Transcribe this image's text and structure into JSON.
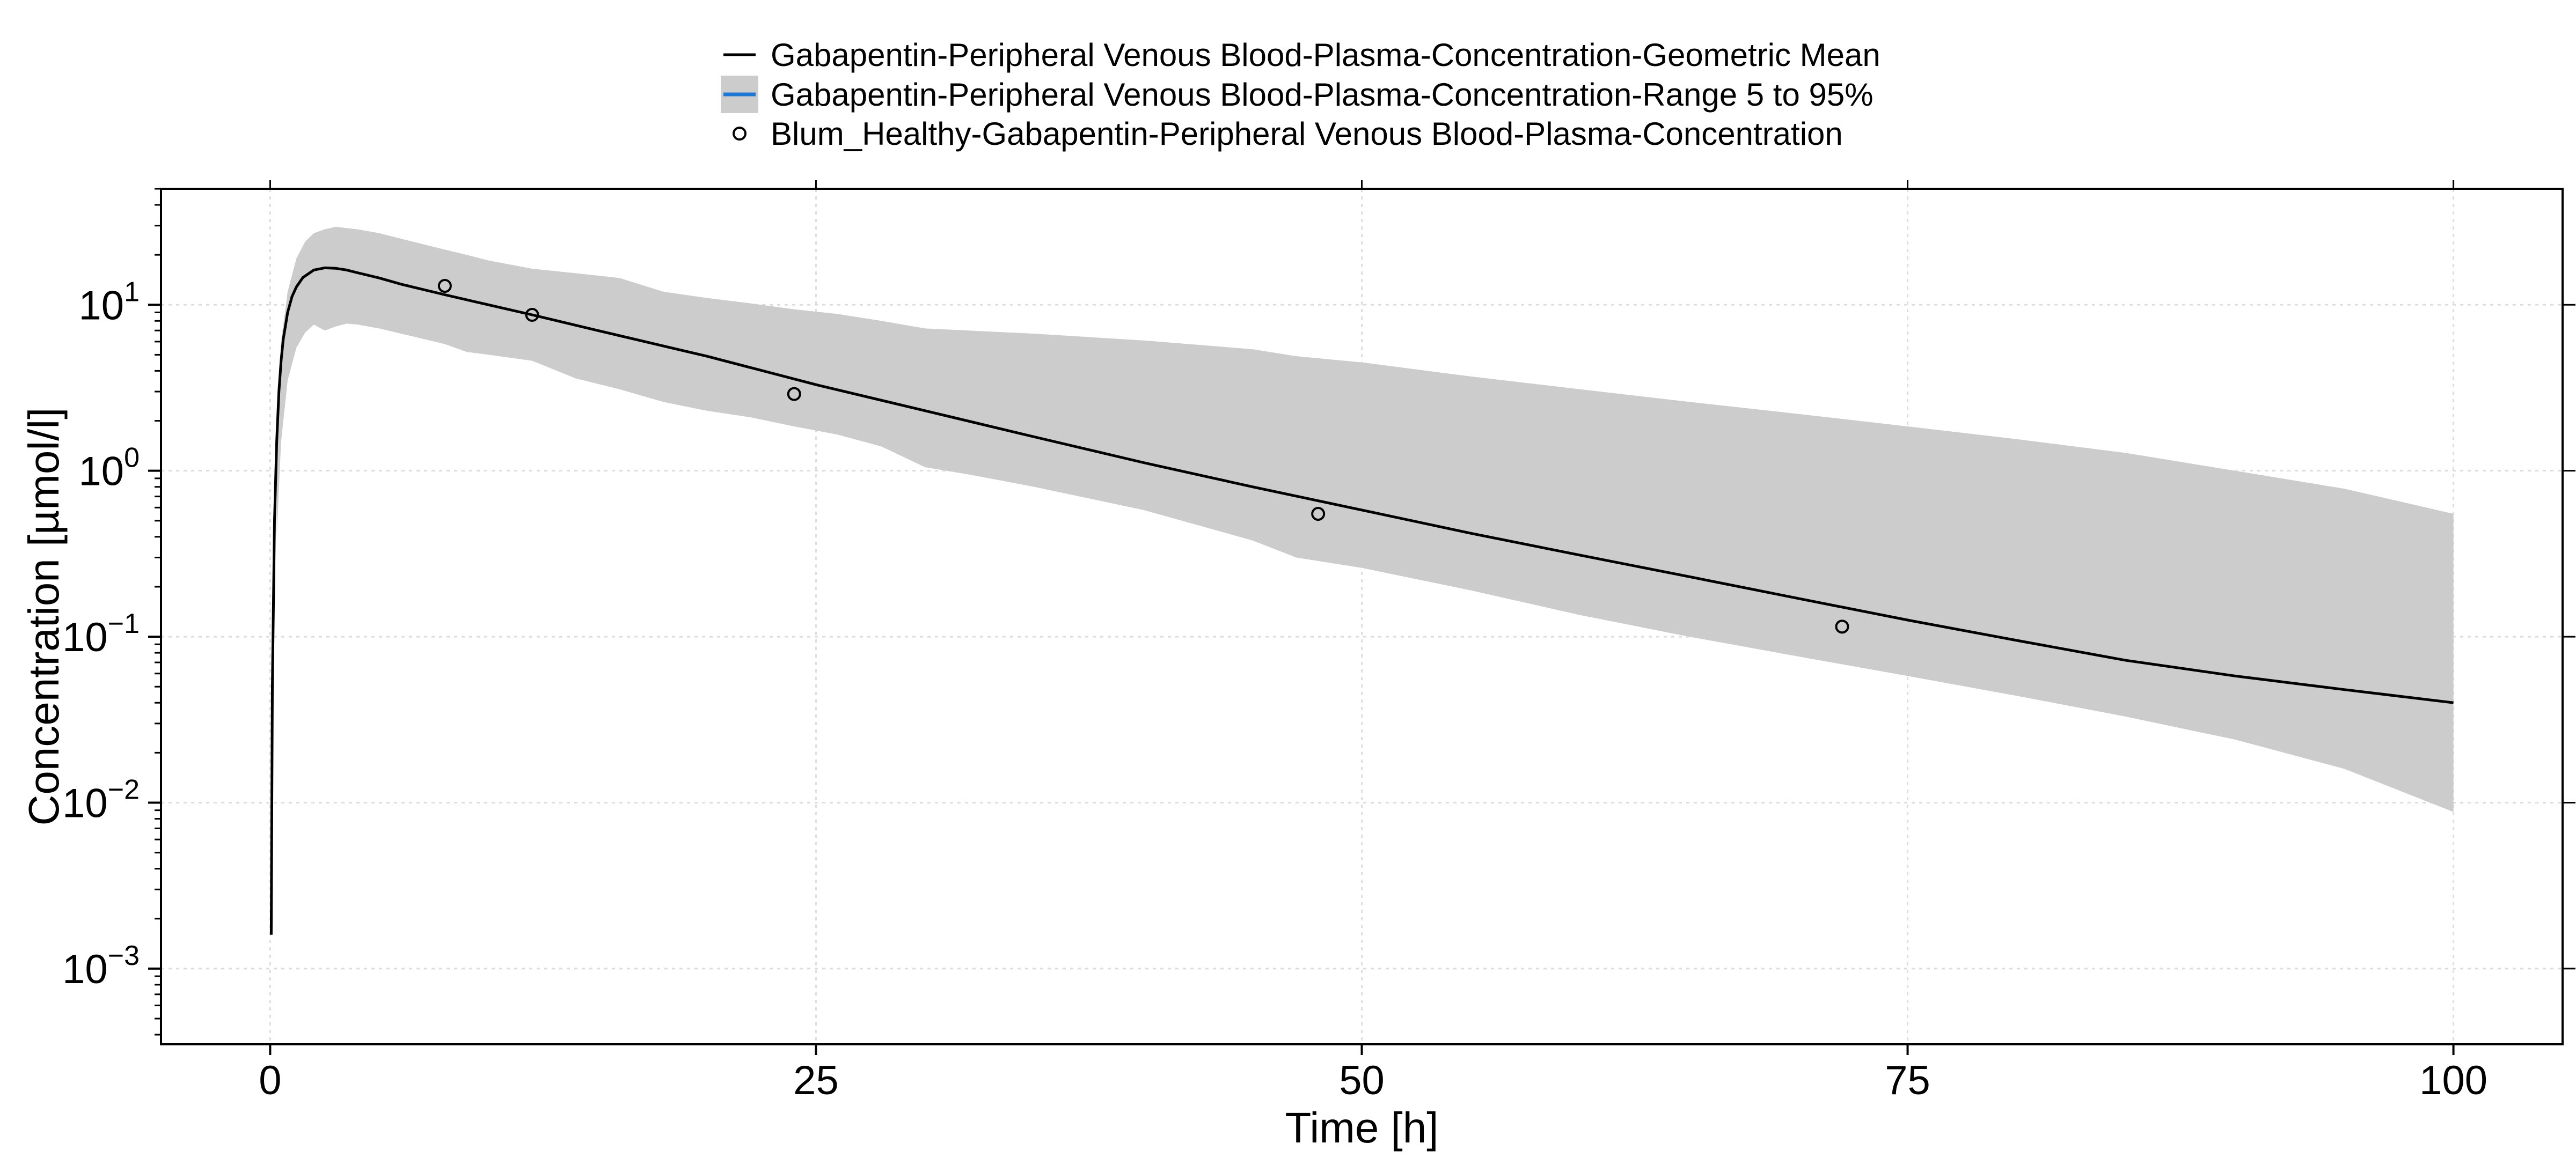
{
  "chart_data": {
    "type": "line",
    "title": "",
    "xlabel": "Time [h]",
    "ylabel": "Concentration [µmol/l]",
    "x_axis": {
      "min": -5,
      "max": 105,
      "ticks": [
        0,
        25,
        50,
        75,
        100
      ],
      "tick_labels": [
        "0",
        "25",
        "50",
        "75",
        "100"
      ]
    },
    "y_axis": {
      "scale": "log",
      "min": 0.00035,
      "max": 50,
      "ticks": [
        0.001,
        0.01,
        0.1,
        1,
        10
      ],
      "tick_labels": [
        {
          "base": "10",
          "exp": "−3"
        },
        {
          "base": "10",
          "exp": "−2"
        },
        {
          "base": "10",
          "exp": "−1"
        },
        {
          "base": "10",
          "exp": "0"
        },
        {
          "base": "10",
          "exp": "1"
        }
      ]
    },
    "grid": true,
    "legend_position": "top-center",
    "legend": [
      {
        "label": "Gabapentin-Peripheral Venous Blood-Plasma-Concentration-Geometric Mean",
        "symbol": "line",
        "color": "#000000"
      },
      {
        "label": "Gabapentin-Peripheral Venous Blood-Plasma-Concentration-Range 5 to 95%",
        "symbol": "band",
        "color": "#cccccc",
        "line_color": "#1f77d4"
      },
      {
        "label": "Blum_Healthy-Gabapentin-Peripheral Venous Blood-Plasma-Concentration",
        "symbol": "circle",
        "color": "#000000"
      }
    ],
    "series": [
      {
        "name": "Gabapentin-Peripheral Venous Blood-Plasma-Concentration-Geometric Mean",
        "kind": "line",
        "color": "#000000",
        "x": [
          0.05,
          0.1,
          0.2,
          0.3,
          0.4,
          0.5,
          0.6,
          0.8,
          1.0,
          1.2,
          1.5,
          2.0,
          2.5,
          3.0,
          3.5,
          4,
          5,
          6,
          8,
          10,
          12,
          15,
          20,
          25,
          30,
          35,
          40,
          45,
          50,
          55,
          60,
          65,
          70,
          75,
          80,
          85,
          90,
          95,
          100
        ],
        "y": [
          0.0016,
          0.05,
          0.5,
          1.5,
          3.0,
          4.6,
          6.2,
          9.0,
          11.2,
          12.8,
          14.6,
          16.2,
          16.7,
          16.6,
          16.2,
          15.6,
          14.5,
          13.3,
          11.5,
          10.0,
          8.7,
          7.0,
          4.9,
          3.3,
          2.3,
          1.6,
          1.12,
          0.8,
          0.58,
          0.42,
          0.31,
          0.23,
          0.17,
          0.126,
          0.095,
          0.072,
          0.058,
          0.048,
          0.04
        ]
      },
      {
        "name": "Gabapentin-Peripheral Venous Blood-Plasma-Concentration-Range 5 to 95%",
        "kind": "band",
        "color": "#cccccc",
        "x": [
          0.3,
          0.5,
          0.8,
          1.2,
          1.6,
          2.0,
          2.5,
          3.0,
          3.5,
          4,
          5,
          6,
          8,
          9,
          10,
          12,
          14,
          16,
          18,
          20,
          22,
          24,
          26,
          28,
          30,
          32,
          35,
          40,
          45,
          47,
          50,
          55,
          60,
          65,
          70,
          75,
          80,
          85,
          90,
          95,
          100
        ],
        "lower": [
          0.4,
          1.5,
          3.5,
          5.5,
          6.8,
          7.6,
          7.0,
          7.4,
          7.7,
          7.6,
          7.2,
          6.7,
          5.8,
          5.2,
          5.0,
          4.6,
          3.6,
          3.1,
          2.6,
          2.3,
          2.1,
          1.85,
          1.65,
          1.4,
          1.05,
          0.95,
          0.8,
          0.58,
          0.38,
          0.3,
          0.26,
          0.19,
          0.135,
          0.1,
          0.076,
          0.058,
          0.044,
          0.033,
          0.024,
          0.016,
          0.0088
        ],
        "upper": [
          2.0,
          6.0,
          12.0,
          19.0,
          24.0,
          27.0,
          28.5,
          29.5,
          29.0,
          28.5,
          27.0,
          25.0,
          21.5,
          20.0,
          18.5,
          16.5,
          15.5,
          14.5,
          12.0,
          11.0,
          10.2,
          9.4,
          8.8,
          8.0,
          7.2,
          7.0,
          6.7,
          6.1,
          5.4,
          4.9,
          4.5,
          3.7,
          3.1,
          2.6,
          2.2,
          1.85,
          1.55,
          1.28,
          1.0,
          0.78,
          0.55
        ]
      },
      {
        "name": "Blum_Healthy-Gabapentin-Peripheral Venous Blood-Plasma-Concentration",
        "kind": "scatter",
        "color": "#000000",
        "x": [
          8,
          12,
          24,
          48,
          72
        ],
        "y": [
          13.0,
          8.7,
          2.9,
          0.55,
          0.115
        ]
      }
    ]
  }
}
